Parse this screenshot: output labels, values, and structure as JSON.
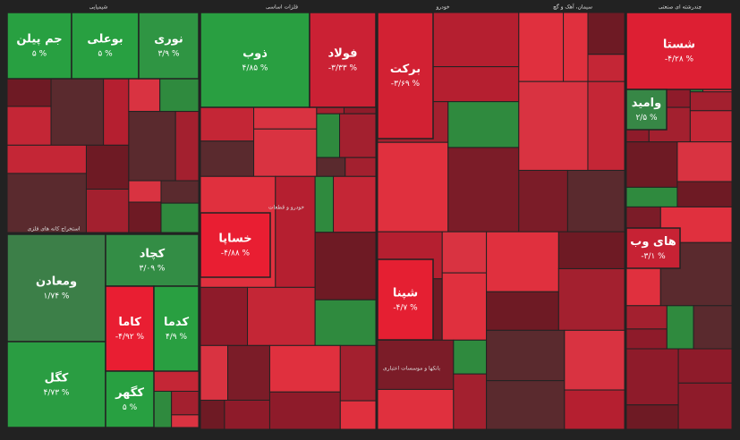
{
  "chart_data": {
    "type": "treemap",
    "sectors": [
      "شیمیایی",
      "فلزات اساسی",
      "خودرو",
      "سیمان، آهک و گچ",
      "چندرشته ای صنعتی",
      "استخراج کانه های فلزی",
      "خودرو و قطعات",
      "بانکها و موسسات اعتباری"
    ],
    "cells": [
      {
        "name": "جم پیلن",
        "value": 5,
        "value_label": "۵ %"
      },
      {
        "name": "بوعلی",
        "value": 5,
        "value_label": "۵ %"
      },
      {
        "name": "نوری",
        "value": 3.9,
        "value_label": "۳/۹ %"
      },
      {
        "name": "ذوب",
        "value": 4.85,
        "value_label": "۴/۸۵ %"
      },
      {
        "name": "فولاد",
        "value": -3.33,
        "value_label": "-۳/۳۳ %"
      },
      {
        "name": "برکت",
        "value": -3.69,
        "value_label": "-۳/۶۹ %"
      },
      {
        "name": "شستا",
        "value": -4.28,
        "value_label": "-۴/۲۸ %"
      },
      {
        "name": "ومعادن",
        "value": 1.74,
        "value_label": "۱/۷۴ %"
      },
      {
        "name": "کگل",
        "value": 4.73,
        "value_label": "۴/۷۳ %"
      },
      {
        "name": "کچاد",
        "value": 3.09,
        "value_label": "۳/۰۹ %"
      },
      {
        "name": "کاما",
        "value": -4.92,
        "value_label": "-۴/۹۲ %"
      },
      {
        "name": "کدما",
        "value": 4.9,
        "value_label": "۴/۹ %"
      },
      {
        "name": "کگهر",
        "value": 5,
        "value_label": "۵ %"
      },
      {
        "name": "خساپا",
        "value": -4.88,
        "value_label": "-۴/۸۸ %"
      },
      {
        "name": "شپنا",
        "value": -4.7,
        "value_label": "-۴/۷ %"
      },
      {
        "name": "های وب",
        "value": -3.1,
        "value_label": "-۳/۱ %"
      },
      {
        "name": "وامید",
        "value": 2.5,
        "value_label": "۲/۵ %"
      }
    ]
  }
}
